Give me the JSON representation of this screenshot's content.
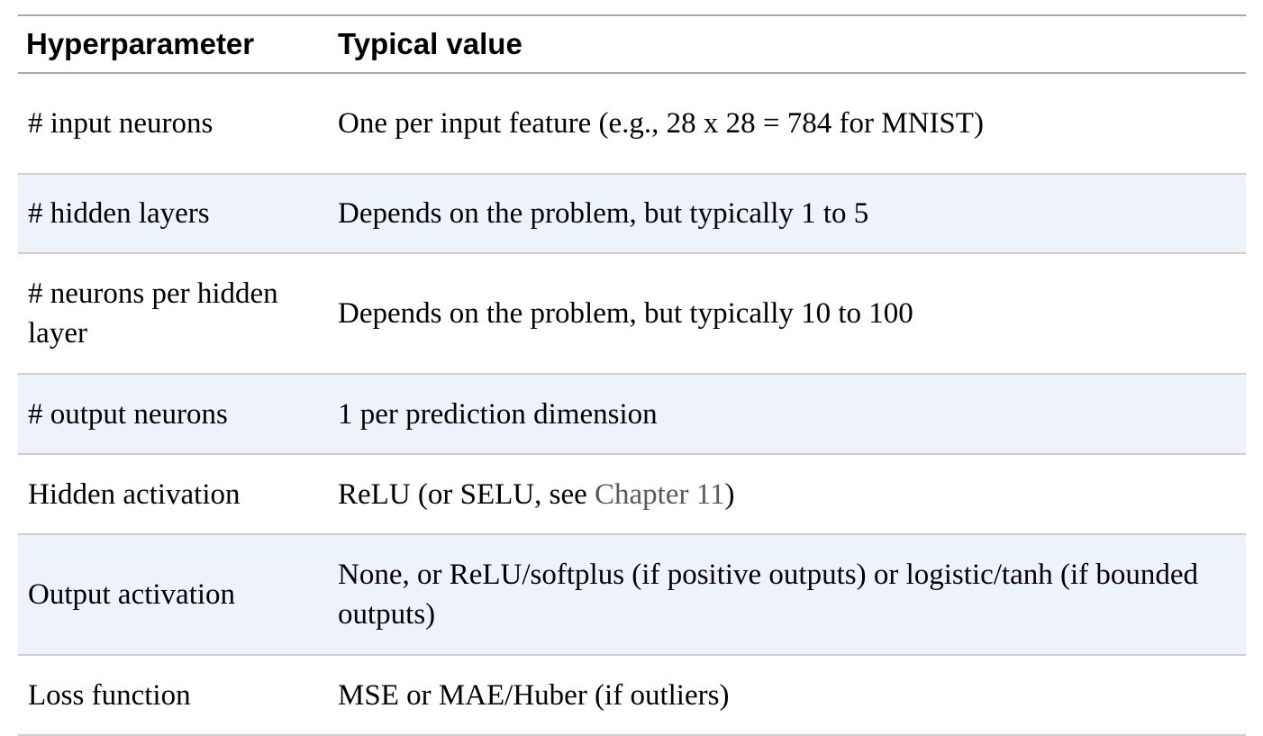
{
  "table": {
    "headers": {
      "param": "Hyperparameter",
      "value": "Typical value"
    },
    "rows": [
      {
        "param": "# input neurons",
        "value": "One per input feature (e.g., 28 x 28 = 784 for MNIST)"
      },
      {
        "param": "# hidden layers",
        "value": "Depends on the problem, but typically 1 to 5"
      },
      {
        "param": "# neurons per hidden layer",
        "value": "Depends on the problem, but typically 10 to 100"
      },
      {
        "param": "# output neurons",
        "value": "1 per prediction dimension"
      },
      {
        "param": "Hidden activation",
        "value_prefix": "ReLU (or SELU, see ",
        "value_link": "Chapter 11",
        "value_suffix": ")"
      },
      {
        "param": "Output activation",
        "value": "None, or ReLU/softplus (if positive outputs) or logistic/tanh (if bounded outputs)"
      },
      {
        "param": "Loss function",
        "value": "MSE or MAE/Huber (if outliers)"
      }
    ]
  }
}
